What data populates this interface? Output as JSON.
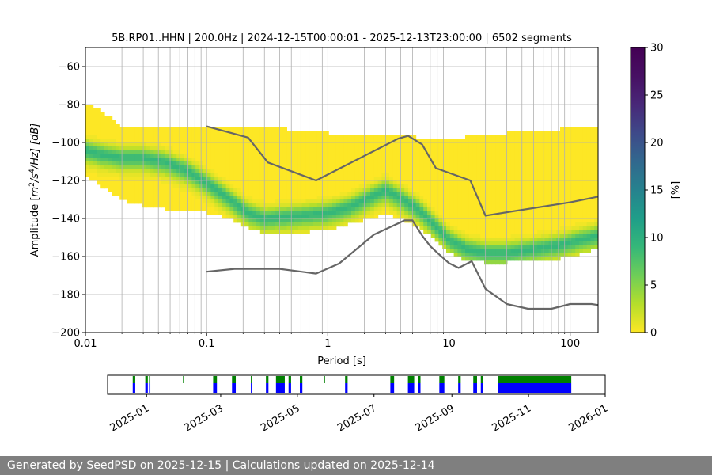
{
  "chart_data": [
    {
      "type": "heatmap",
      "title": "5B.RP01..HHN | 200.0Hz | 2024-12-15T00:00:01 - 2025-12-13T23:00:00 | 6502 segments",
      "xlabel": "Period [s]",
      "ylabel_parts": {
        "pre": "Amplitude [",
        "m": "m",
        "exp2": "2",
        "slash_s": "/s",
        "exp4": "4",
        "post": "/Hz] [dB]"
      },
      "x_scale": "log",
      "xlim": [
        0.01,
        170
      ],
      "ylim": [
        -200,
        -50
      ],
      "x_ticks": [
        0.01,
        0.1,
        1,
        10,
        100
      ],
      "x_tick_labels": [
        "0.01",
        "0.1",
        "1",
        "10",
        "100"
      ],
      "y_ticks": [
        -200,
        -180,
        -160,
        -140,
        -120,
        -100,
        -80,
        -60
      ],
      "y_tick_labels": [
        "−200",
        "−180",
        "−160",
        "−140",
        "−120",
        "−100",
        "−80",
        "−60"
      ],
      "colorbar": {
        "label": "[%]",
        "range": [
          0,
          30
        ],
        "ticks": [
          0,
          5,
          10,
          15,
          20,
          25,
          30
        ],
        "tick_labels": [
          "0",
          "5",
          "10",
          "15",
          "20",
          "25",
          "30"
        ],
        "colormap": "viridis_r"
      },
      "psd_mode_curve": {
        "period": [
          0.01,
          0.013,
          0.02,
          0.03,
          0.045,
          0.07,
          0.1,
          0.15,
          0.22,
          0.3,
          0.45,
          0.7,
          1.0,
          1.5,
          2.2,
          3.0,
          4.2,
          5.5,
          7.0,
          10,
          14,
          20,
          30,
          50,
          80,
          120,
          170
        ],
        "db": [
          -104,
          -106,
          -108,
          -108,
          -110,
          -115,
          -121,
          -129,
          -137,
          -140,
          -139,
          -138,
          -137,
          -134,
          -129,
          -125,
          -130,
          -135,
          -141,
          -151,
          -156,
          -158,
          -158,
          -156,
          -154,
          -151,
          -149
        ]
      },
      "psd_spread": {
        "period": [
          0.01,
          0.013,
          0.02,
          0.03,
          0.045,
          0.07,
          0.1,
          0.15,
          0.22,
          0.3,
          0.45,
          0.7,
          1.0,
          1.5,
          2.2,
          3.0,
          4.2,
          5.5,
          7.0,
          10,
          14,
          20,
          30,
          50,
          80,
          120,
          170
        ],
        "low_db": [
          -118,
          -122,
          -130,
          -133,
          -135,
          -136,
          -137,
          -140,
          -145,
          -148,
          -148,
          -147,
          -146,
          -143,
          -140,
          -138,
          -141,
          -144,
          -149,
          -158,
          -162,
          -163,
          -163,
          -162,
          -161,
          -159,
          -156
        ],
        "high_db": [
          -80,
          -82,
          -92,
          -93,
          -93,
          -92,
          -92,
          -92,
          -92,
          -92,
          -93,
          -94,
          -95,
          -96,
          -96,
          -96,
          -97,
          -97,
          -98,
          -98,
          -97,
          -96,
          -95,
          -94,
          -93,
          -92,
          -91
        ]
      },
      "series": [
        {
          "name": "",
          "color": "#666666",
          "period": [
            0.1,
            0.22,
            0.32,
            0.8,
            3.8,
            4.6,
            6.0,
            7.8,
            15.0,
            20.0,
            100.0,
            170.0
          ],
          "db": [
            -91.5,
            -97.4,
            -110.5,
            -120.0,
            -98.0,
            -96.5,
            -101.0,
            -113.5,
            -120.0,
            -138.5,
            -131.5,
            -128.5
          ]
        },
        {
          "name": "",
          "color": "#666666",
          "period": [
            0.1,
            0.17,
            0.4,
            0.8,
            1.24,
            2.4,
            4.3,
            5.0,
            6.0,
            7.0,
            8.0,
            10.0,
            12.0,
            15.4,
            20.0,
            30.0,
            45.0,
            70.0,
            100.0,
            150.0,
            170.0
          ],
          "db": [
            -168.0,
            -166.5,
            -166.5,
            -169.0,
            -163.7,
            -148.5,
            -141.0,
            -141.0,
            -149.0,
            -154.5,
            -158.0,
            -163.5,
            -166.0,
            -162.5,
            -177.0,
            -185.0,
            -187.5,
            -187.5,
            -185.0,
            -185.0,
            -185.5
          ]
        }
      ]
    },
    {
      "type": "bar",
      "x_tick_labels": [
        "2025-01",
        "2025-03",
        "2025-05",
        "2025-07",
        "2025-09",
        "2025-11",
        "2026-01"
      ],
      "xlim": [
        "2024-12-01",
        "2026-01-01"
      ],
      "series": [
        {
          "name": "",
          "color": "#008000",
          "spans": [
            [
              "2024-12-21",
              "2024-12-23"
            ],
            [
              "2024-12-31",
              "2025-01-02"
            ],
            [
              "2025-01-03",
              "2025-01-04"
            ],
            [
              "2025-01-30",
              "2025-01-31"
            ],
            [
              "2025-02-23",
              "2025-02-26"
            ],
            [
              "2025-03-10",
              "2025-03-13"
            ],
            [
              "2025-03-25",
              "2025-03-26"
            ],
            [
              "2025-04-06",
              "2025-04-08"
            ],
            [
              "2025-04-14",
              "2025-04-21"
            ],
            [
              "2025-04-24",
              "2025-04-26"
            ],
            [
              "2025-05-03",
              "2025-05-05"
            ],
            [
              "2025-05-22",
              "2025-05-23"
            ],
            [
              "2025-06-08",
              "2025-06-10"
            ],
            [
              "2025-07-14",
              "2025-07-17"
            ],
            [
              "2025-07-28",
              "2025-08-02"
            ],
            [
              "2025-08-05",
              "2025-08-07"
            ],
            [
              "2025-08-22",
              "2025-08-26"
            ],
            [
              "2025-09-06",
              "2025-09-08"
            ],
            [
              "2025-09-18",
              "2025-09-21"
            ],
            [
              "2025-09-24",
              "2025-09-26"
            ],
            [
              "2025-10-08",
              "2025-12-05"
            ]
          ]
        },
        {
          "name": "",
          "color": "#0000ff",
          "spans": [
            [
              "2024-12-21",
              "2024-12-23"
            ],
            [
              "2024-12-31",
              "2025-01-02"
            ],
            [
              "2025-01-03",
              "2025-01-04"
            ],
            [
              "2025-02-23",
              "2025-02-26"
            ],
            [
              "2025-03-10",
              "2025-03-13"
            ],
            [
              "2025-03-25",
              "2025-03-26"
            ],
            [
              "2025-04-06",
              "2025-04-08"
            ],
            [
              "2025-04-14",
              "2025-04-21"
            ],
            [
              "2025-04-24",
              "2025-04-26"
            ],
            [
              "2025-05-03",
              "2025-05-05"
            ],
            [
              "2025-06-08",
              "2025-06-10"
            ],
            [
              "2025-07-14",
              "2025-07-17"
            ],
            [
              "2025-07-28",
              "2025-08-02"
            ],
            [
              "2025-08-05",
              "2025-08-07"
            ],
            [
              "2025-08-22",
              "2025-08-26"
            ],
            [
              "2025-09-06",
              "2025-09-08"
            ],
            [
              "2025-09-18",
              "2025-09-21"
            ],
            [
              "2025-09-24",
              "2025-09-26"
            ],
            [
              "2025-10-08",
              "2025-12-05"
            ]
          ]
        }
      ]
    }
  ],
  "footer": {
    "text": "Generated by SeedPSD on 2025-12-15 | Calculations updated on 2025-12-14"
  }
}
